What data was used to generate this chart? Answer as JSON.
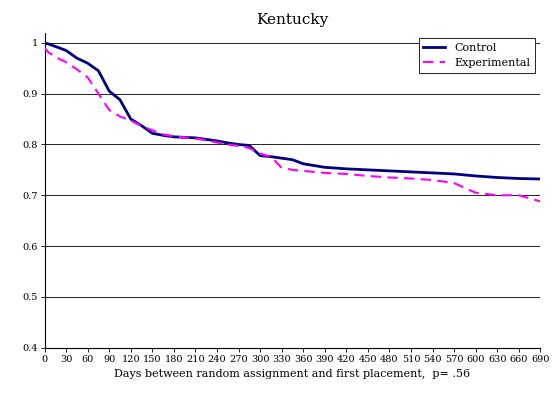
{
  "title": "Kentucky",
  "xlabel": "Days between random assignment and first placement,  p= .56",
  "ylim": [
    0.4,
    1.02
  ],
  "xlim": [
    0,
    690
  ],
  "yticks": [
    0.4,
    0.5,
    0.6,
    0.7,
    0.8,
    0.9,
    1.0
  ],
  "ytick_labels": [
    "0.4",
    "0.5",
    "0.6",
    "0.7",
    "0.8",
    "0.9",
    "1"
  ],
  "xticks": [
    0,
    30,
    60,
    90,
    120,
    150,
    180,
    210,
    240,
    270,
    300,
    330,
    360,
    390,
    420,
    450,
    480,
    510,
    540,
    570,
    600,
    630,
    660,
    690
  ],
  "control_x": [
    0,
    5,
    15,
    30,
    45,
    60,
    75,
    90,
    105,
    120,
    135,
    150,
    165,
    180,
    195,
    210,
    225,
    240,
    255,
    270,
    285,
    300,
    315,
    330,
    345,
    360,
    390,
    420,
    450,
    480,
    510,
    540,
    570,
    600,
    630,
    660,
    690
  ],
  "control_y": [
    1.0,
    0.998,
    0.993,
    0.985,
    0.97,
    0.96,
    0.945,
    0.905,
    0.888,
    0.85,
    0.837,
    0.822,
    0.818,
    0.815,
    0.814,
    0.813,
    0.81,
    0.807,
    0.803,
    0.8,
    0.798,
    0.778,
    0.776,
    0.773,
    0.77,
    0.762,
    0.755,
    0.752,
    0.75,
    0.748,
    0.746,
    0.744,
    0.742,
    0.738,
    0.735,
    0.733,
    0.732
  ],
  "experimental_x": [
    0,
    5,
    15,
    30,
    45,
    60,
    75,
    90,
    105,
    120,
    135,
    150,
    165,
    180,
    195,
    210,
    225,
    240,
    255,
    270,
    285,
    300,
    315,
    330,
    345,
    360,
    390,
    420,
    450,
    480,
    510,
    540,
    570,
    600,
    630,
    660,
    690
  ],
  "experimental_y": [
    0.99,
    0.982,
    0.972,
    0.962,
    0.948,
    0.932,
    0.9,
    0.868,
    0.855,
    0.847,
    0.836,
    0.828,
    0.82,
    0.816,
    0.814,
    0.812,
    0.808,
    0.804,
    0.8,
    0.797,
    0.793,
    0.782,
    0.776,
    0.754,
    0.75,
    0.748,
    0.744,
    0.742,
    0.738,
    0.735,
    0.733,
    0.73,
    0.724,
    0.705,
    0.7,
    0.7,
    0.688
  ],
  "control_color": "#000080",
  "experimental_color": "#FF00FF",
  "background_color": "#ffffff",
  "title_fontsize": 11,
  "xlabel_fontsize": 8,
  "tick_fontsize": 7,
  "legend_fontsize": 8
}
